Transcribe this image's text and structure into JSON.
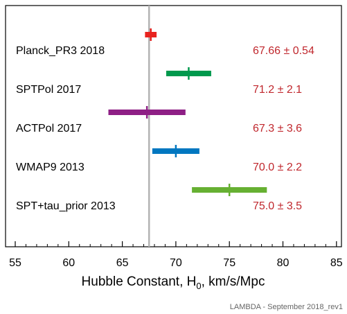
{
  "chart_data": {
    "type": "forest",
    "xlabel_main": "Hubble Constant, H",
    "xlabel_sub": "0",
    "xlabel_unit": ", km/s/Mpc",
    "xlim": [
      54,
      85.5
    ],
    "xticks": [
      55,
      60,
      65,
      70,
      75,
      80,
      85
    ],
    "xtick_labels": [
      "55",
      "60",
      "65",
      "70",
      "75",
      "80",
      "85"
    ],
    "reference_line": 67.5,
    "grid": false,
    "series": [
      {
        "name": "Planck_PR3 2018",
        "value": 67.66,
        "error": 0.54,
        "display": "67.66 ± 0.54",
        "color": "#e8231f"
      },
      {
        "name": "SPTPol 2017",
        "value": 71.2,
        "error": 2.1,
        "display": "71.2 ± 2.1",
        "color": "#00994d"
      },
      {
        "name": "ACTPol 2017",
        "value": 67.3,
        "error": 3.6,
        "display": "67.3 ± 3.6",
        "color": "#8e1f85"
      },
      {
        "name": "WMAP9 2013",
        "value": 70.0,
        "error": 2.2,
        "display": "70.0 ± 2.2",
        "color": "#0077c0"
      },
      {
        "name": "SPT+tau_prior 2013",
        "value": 75.0,
        "error": 3.5,
        "display": "75.0 ± 3.5",
        "color": "#66b032"
      }
    ],
    "value_color": "#c0272d"
  },
  "footer": {
    "credit": "LAMBDA - September 2018_rev1"
  }
}
